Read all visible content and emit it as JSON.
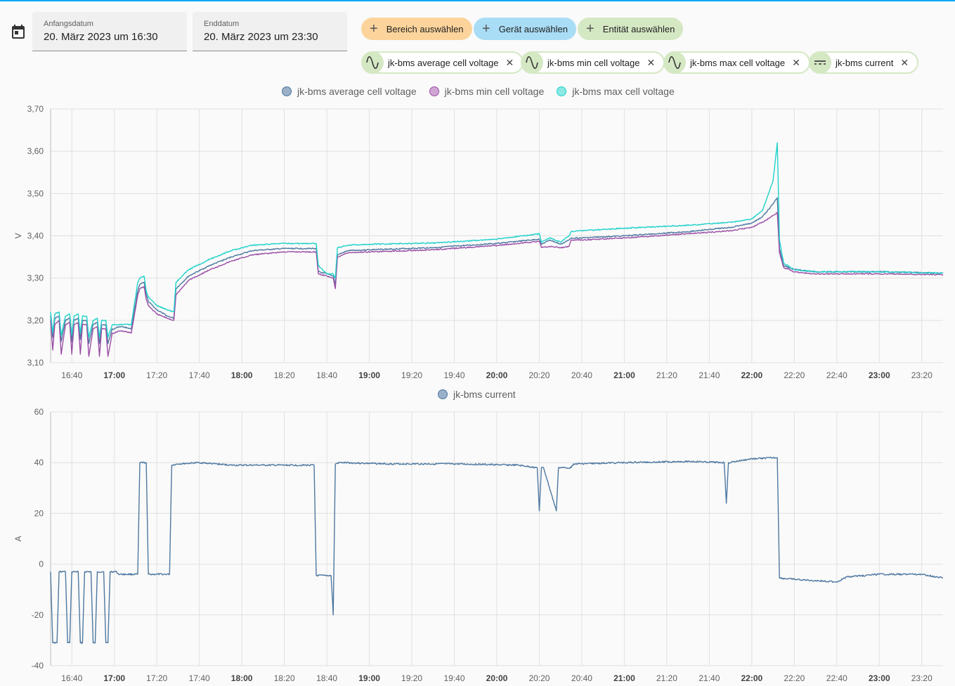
{
  "header": {
    "start_label": "Anfangsdatum",
    "start_value": "20. März 2023 um 16:30",
    "end_label": "Enddatum",
    "end_value": "20. März 2023 um 23:30"
  },
  "pickers": {
    "area": "Bereich auswählen",
    "device": "Gerät auswählen",
    "entity": "Entität auswählen"
  },
  "entities": [
    "jk-bms average cell voltage",
    "jk-bms min cell voltage",
    "jk-bms max cell voltage",
    "jk-bms current"
  ],
  "icons": {
    "calendar": "calendar-icon",
    "add": "plus-icon",
    "sensor": "sine-wave-icon",
    "current": "dc-current-icon",
    "remove": "close-icon"
  },
  "colors": {
    "avg": "#4e78a0",
    "min": "#9b4ea6",
    "max": "#1fd2cb",
    "current": "#4e78a0",
    "area_chip": "#fcd49b",
    "device_chip": "#a9ddf6",
    "entity_chip": "#d5e8c4"
  },
  "chart_data": [
    {
      "type": "line",
      "ylabel": "V",
      "ylim": [
        3.1,
        3.7
      ],
      "yticks": [
        "3,10",
        "3,20",
        "3,30",
        "3,40",
        "3,50",
        "3,60",
        "3,70"
      ],
      "xlim": [
        "16:30",
        "23:30"
      ],
      "xticks": [
        "16:40",
        "17:00",
        "17:20",
        "17:40",
        "18:00",
        "18:20",
        "18:40",
        "19:00",
        "19:20",
        "19:40",
        "20:00",
        "20:20",
        "20:40",
        "21:00",
        "21:20",
        "21:40",
        "22:00",
        "22:20",
        "22:40",
        "23:00",
        "23:20"
      ],
      "bold_ticks": [
        "17:00",
        "18:00",
        "19:00",
        "20:00",
        "21:00",
        "22:00",
        "23:00"
      ],
      "grid": true,
      "legend": "top-center",
      "series": [
        {
          "name": "jk-bms average cell voltage",
          "color": "#4e78a0",
          "x": [
            "16:30",
            "16:31",
            "16:32",
            "16:34",
            "16:35",
            "16:37",
            "16:39",
            "16:40",
            "16:41",
            "16:43",
            "16:44",
            "16:45",
            "16:47",
            "16:48",
            "16:50",
            "16:52",
            "16:53",
            "16:54",
            "16:56",
            "16:57",
            "16:59",
            "17:00",
            "17:02",
            "17:04",
            "17:08",
            "17:11",
            "17:12",
            "17:14",
            "17:15",
            "17:16",
            "17:20",
            "17:25",
            "17:28",
            "17:29",
            "17:35",
            "17:45",
            "17:55",
            "18:05",
            "18:20",
            "18:35",
            "18:36",
            "18:40",
            "18:43",
            "18:44",
            "18:45",
            "18:50",
            "19:00",
            "19:30",
            "20:00",
            "20:20",
            "20:21",
            "20:25",
            "20:30",
            "20:34",
            "20:35",
            "20:40",
            "21:00",
            "21:30",
            "21:50",
            "22:00",
            "22:05",
            "22:10",
            "22:12",
            "22:13",
            "22:15",
            "22:20",
            "22:30",
            "23:00",
            "23:30"
          ],
          "y": [
            3.21,
            3.16,
            3.205,
            3.21,
            3.15,
            3.2,
            3.205,
            3.15,
            3.2,
            3.205,
            3.155,
            3.2,
            3.2,
            3.145,
            3.19,
            3.195,
            3.145,
            3.19,
            3.19,
            3.145,
            3.18,
            3.18,
            3.185,
            3.185,
            3.18,
            3.27,
            3.285,
            3.29,
            3.26,
            3.245,
            3.225,
            3.21,
            3.205,
            3.275,
            3.305,
            3.33,
            3.35,
            3.365,
            3.37,
            3.37,
            3.315,
            3.31,
            3.305,
            3.285,
            3.355,
            3.365,
            3.367,
            3.372,
            3.382,
            3.392,
            3.38,
            3.39,
            3.38,
            3.39,
            3.395,
            3.395,
            3.4,
            3.41,
            3.42,
            3.43,
            3.445,
            3.475,
            3.49,
            3.37,
            3.33,
            3.32,
            3.315,
            3.315,
            3.312
          ]
        },
        {
          "name": "jk-bms min cell voltage",
          "color": "#9b4ea6",
          "x": [
            "16:30",
            "16:31",
            "16:32",
            "16:34",
            "16:35",
            "16:37",
            "16:39",
            "16:40",
            "16:41",
            "16:43",
            "16:44",
            "16:45",
            "16:47",
            "16:48",
            "16:50",
            "16:52",
            "16:53",
            "16:54",
            "16:56",
            "16:57",
            "16:59",
            "17:00",
            "17:02",
            "17:04",
            "17:08",
            "17:11",
            "17:12",
            "17:14",
            "17:15",
            "17:16",
            "17:20",
            "17:25",
            "17:28",
            "17:29",
            "17:35",
            "17:45",
            "17:55",
            "18:05",
            "18:20",
            "18:35",
            "18:36",
            "18:40",
            "18:43",
            "18:44",
            "18:45",
            "18:50",
            "19:00",
            "19:30",
            "20:00",
            "20:20",
            "20:21",
            "20:25",
            "20:30",
            "20:34",
            "20:35",
            "20:40",
            "21:00",
            "21:30",
            "21:50",
            "22:00",
            "22:05",
            "22:10",
            "22:12",
            "22:13",
            "22:15",
            "22:20",
            "22:30",
            "23:00",
            "23:30"
          ],
          "y": [
            3.2,
            3.13,
            3.19,
            3.2,
            3.12,
            3.19,
            3.195,
            3.12,
            3.19,
            3.195,
            3.12,
            3.19,
            3.19,
            3.115,
            3.18,
            3.185,
            3.115,
            3.18,
            3.18,
            3.115,
            3.17,
            3.17,
            3.175,
            3.175,
            3.17,
            3.26,
            3.275,
            3.28,
            3.25,
            3.235,
            3.215,
            3.205,
            3.2,
            3.26,
            3.295,
            3.32,
            3.34,
            3.355,
            3.362,
            3.362,
            3.31,
            3.305,
            3.3,
            3.275,
            3.35,
            3.36,
            3.362,
            3.367,
            3.377,
            3.387,
            3.372,
            3.375,
            3.372,
            3.375,
            3.39,
            3.39,
            3.395,
            3.405,
            3.412,
            3.42,
            3.432,
            3.448,
            3.455,
            3.36,
            3.325,
            3.315,
            3.31,
            3.31,
            3.308
          ]
        },
        {
          "name": "jk-bms max cell voltage",
          "color": "#1fd2cb",
          "x": [
            "16:30",
            "16:31",
            "16:32",
            "16:34",
            "16:35",
            "16:37",
            "16:39",
            "16:40",
            "16:41",
            "16:43",
            "16:44",
            "16:45",
            "16:47",
            "16:48",
            "16:50",
            "16:52",
            "16:53",
            "16:54",
            "16:56",
            "16:57",
            "16:59",
            "17:00",
            "17:02",
            "17:04",
            "17:08",
            "17:11",
            "17:12",
            "17:14",
            "17:15",
            "17:16",
            "17:20",
            "17:25",
            "17:28",
            "17:29",
            "17:35",
            "17:45",
            "17:55",
            "18:05",
            "18:20",
            "18:35",
            "18:36",
            "18:40",
            "18:43",
            "18:44",
            "18:45",
            "18:50",
            "19:00",
            "19:30",
            "20:00",
            "20:20",
            "20:21",
            "20:25",
            "20:30",
            "20:34",
            "20:35",
            "20:40",
            "21:00",
            "21:30",
            "21:50",
            "22:00",
            "22:05",
            "22:10",
            "22:12",
            "22:13",
            "22:15",
            "22:20",
            "22:30",
            "23:00",
            "23:30"
          ],
          "y": [
            3.22,
            3.17,
            3.215,
            3.22,
            3.165,
            3.21,
            3.215,
            3.165,
            3.21,
            3.215,
            3.17,
            3.21,
            3.21,
            3.16,
            3.2,
            3.205,
            3.16,
            3.2,
            3.2,
            3.16,
            3.19,
            3.19,
            3.19,
            3.19,
            3.19,
            3.29,
            3.3,
            3.305,
            3.27,
            3.255,
            3.235,
            3.225,
            3.22,
            3.29,
            3.32,
            3.345,
            3.365,
            3.378,
            3.382,
            3.382,
            3.33,
            3.31,
            3.31,
            3.3,
            3.372,
            3.378,
            3.38,
            3.383,
            3.392,
            3.405,
            3.385,
            3.395,
            3.385,
            3.4,
            3.41,
            3.412,
            3.418,
            3.425,
            3.432,
            3.44,
            3.46,
            3.53,
            3.62,
            3.39,
            3.335,
            3.32,
            3.315,
            3.315,
            3.312
          ]
        }
      ]
    },
    {
      "type": "line",
      "ylabel": "A",
      "ylim": [
        -40,
        60
      ],
      "yticks": [
        "-40",
        "-20",
        "0",
        "20",
        "40",
        "60"
      ],
      "xlim": [
        "16:30",
        "23:30"
      ],
      "xticks": [
        "16:40",
        "17:00",
        "17:20",
        "17:40",
        "18:00",
        "18:20",
        "18:40",
        "19:00",
        "19:20",
        "19:40",
        "20:00",
        "20:20",
        "20:40",
        "21:00",
        "21:20",
        "21:40",
        "22:00",
        "22:20",
        "22:40",
        "23:00",
        "23:20"
      ],
      "bold_ticks": [
        "17:00",
        "18:00",
        "19:00",
        "20:00",
        "21:00",
        "22:00",
        "23:00"
      ],
      "grid": true,
      "legend": "top-center",
      "series": [
        {
          "name": "jk-bms current",
          "color": "#4e78a0",
          "x": [
            "16:30",
            "16:31",
            "16:33",
            "16:34",
            "16:37",
            "16:38",
            "16:39",
            "16:40",
            "16:43",
            "16:44",
            "16:45",
            "16:46",
            "16:49",
            "16:50",
            "16:51",
            "16:52",
            "16:55",
            "16:56",
            "16:57",
            "16:58",
            "17:01",
            "17:02",
            "17:11",
            "17:12",
            "17:15",
            "17:16",
            "17:26",
            "17:27",
            "17:30",
            "17:40",
            "17:55",
            "18:10",
            "18:34",
            "18:35",
            "18:42",
            "18:43",
            "18:44",
            "18:46",
            "19:10",
            "19:40",
            "20:10",
            "20:19",
            "20:20",
            "20:21",
            "20:22",
            "20:28",
            "20:29",
            "20:35",
            "20:36",
            "21:00",
            "21:30",
            "21:47",
            "21:48",
            "21:49",
            "22:00",
            "22:12",
            "22:13",
            "22:20",
            "22:40",
            "22:45",
            "23:00",
            "23:20",
            "23:30"
          ],
          "y": [
            -3,
            -31,
            -31,
            -3,
            -3,
            -31,
            -31,
            -3,
            -3,
            -31,
            -31,
            -3,
            -3,
            -31,
            -31,
            -3,
            -3,
            -31,
            -31,
            -3,
            -3,
            -4,
            -4,
            40,
            40,
            -4,
            -4,
            39,
            39.5,
            40,
            39,
            39,
            39,
            -4.5,
            -4.5,
            -20,
            39.5,
            40,
            39.5,
            39.5,
            39,
            38,
            21,
            38,
            38,
            21,
            38,
            38,
            39.5,
            40,
            40.5,
            40,
            24,
            40,
            41.5,
            42,
            -5.5,
            -6,
            -7,
            -5,
            -4,
            -4,
            -5.5
          ]
        }
      ]
    }
  ]
}
